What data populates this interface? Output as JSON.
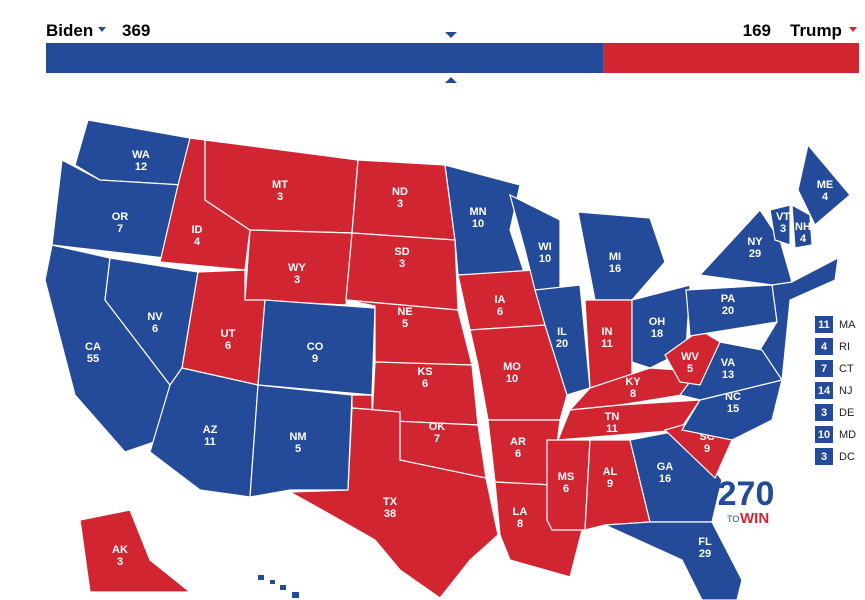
{
  "candidates": [
    {
      "name": "Biden",
      "votes": 369,
      "color": "#244a9a"
    },
    {
      "name": "Trump",
      "votes": 169,
      "color": "#d22532"
    }
  ],
  "states": [
    {
      "abbr": "WA",
      "votes": 12,
      "color": "#244a9a"
    },
    {
      "abbr": "OR",
      "votes": 7,
      "color": "#244a9a"
    },
    {
      "abbr": "CA",
      "votes": 55,
      "color": "#244a9a"
    },
    {
      "abbr": "NV",
      "votes": 6,
      "color": "#244a9a"
    },
    {
      "abbr": "ID",
      "votes": 4,
      "color": "#d22532"
    },
    {
      "abbr": "MT",
      "votes": 3,
      "color": "#d22532"
    },
    {
      "abbr": "WY",
      "votes": 3,
      "color": "#d22532"
    },
    {
      "abbr": "UT",
      "votes": 6,
      "color": "#d22532"
    },
    {
      "abbr": "CO",
      "votes": 9,
      "color": "#244a9a"
    },
    {
      "abbr": "AZ",
      "votes": 11,
      "color": "#244a9a"
    },
    {
      "abbr": "NM",
      "votes": 5,
      "color": "#244a9a"
    },
    {
      "abbr": "ND",
      "votes": 3,
      "color": "#d22532"
    },
    {
      "abbr": "SD",
      "votes": 3,
      "color": "#d22532"
    },
    {
      "abbr": "NE",
      "votes": 5,
      "color": "#d22532"
    },
    {
      "abbr": "KS",
      "votes": 6,
      "color": "#d22532"
    },
    {
      "abbr": "OK",
      "votes": 7,
      "color": "#d22532"
    },
    {
      "abbr": "TX",
      "votes": 38,
      "color": "#d22532"
    },
    {
      "abbr": "MN",
      "votes": 10,
      "color": "#244a9a"
    },
    {
      "abbr": "IA",
      "votes": 6,
      "color": "#d22532"
    },
    {
      "abbr": "MO",
      "votes": 10,
      "color": "#d22532"
    },
    {
      "abbr": "AR",
      "votes": 6,
      "color": "#d22532"
    },
    {
      "abbr": "LA",
      "votes": 8,
      "color": "#d22532"
    },
    {
      "abbr": "WI",
      "votes": 10,
      "color": "#244a9a"
    },
    {
      "abbr": "IL",
      "votes": 20,
      "color": "#244a9a"
    },
    {
      "abbr": "MI",
      "votes": 16,
      "color": "#244a9a"
    },
    {
      "abbr": "IN",
      "votes": 11,
      "color": "#d22532"
    },
    {
      "abbr": "OH",
      "votes": 18,
      "color": "#244a9a"
    },
    {
      "abbr": "KY",
      "votes": 8,
      "color": "#d22532"
    },
    {
      "abbr": "TN",
      "votes": 11,
      "color": "#d22532"
    },
    {
      "abbr": "MS",
      "votes": 6,
      "color": "#d22532"
    },
    {
      "abbr": "AL",
      "votes": 9,
      "color": "#d22532"
    },
    {
      "abbr": "GA",
      "votes": 16,
      "color": "#244a9a"
    },
    {
      "abbr": "FL",
      "votes": 29,
      "color": "#244a9a"
    },
    {
      "abbr": "SC",
      "votes": 9,
      "color": "#d22532"
    },
    {
      "abbr": "NC",
      "votes": 15,
      "color": "#244a9a"
    },
    {
      "abbr": "VA",
      "votes": 13,
      "color": "#244a9a"
    },
    {
      "abbr": "WV",
      "votes": 5,
      "color": "#d22532"
    },
    {
      "abbr": "PA",
      "votes": 20,
      "color": "#244a9a"
    },
    {
      "abbr": "NY",
      "votes": 29,
      "color": "#244a9a"
    },
    {
      "abbr": "VT",
      "votes": 3,
      "color": "#244a9a"
    },
    {
      "abbr": "NH",
      "votes": 4,
      "color": "#244a9a"
    },
    {
      "abbr": "ME",
      "votes": 4,
      "color": "#244a9a"
    },
    {
      "abbr": "AK",
      "votes": 3,
      "color": "#d22532"
    }
  ],
  "small_states": [
    {
      "abbr": "MA",
      "votes": 11,
      "color": "#244a9a"
    },
    {
      "abbr": "RI",
      "votes": 4,
      "color": "#244a9a"
    },
    {
      "abbr": "CT",
      "votes": 7,
      "color": "#244a9a"
    },
    {
      "abbr": "NJ",
      "votes": 14,
      "color": "#244a9a"
    },
    {
      "abbr": "DE",
      "votes": 3,
      "color": "#244a9a"
    },
    {
      "abbr": "MD",
      "votes": 10,
      "color": "#244a9a"
    },
    {
      "abbr": "DC",
      "votes": 3,
      "color": "#244a9a"
    }
  ],
  "logo": {
    "number": "270",
    "to": "TO",
    "win": "WIN"
  }
}
